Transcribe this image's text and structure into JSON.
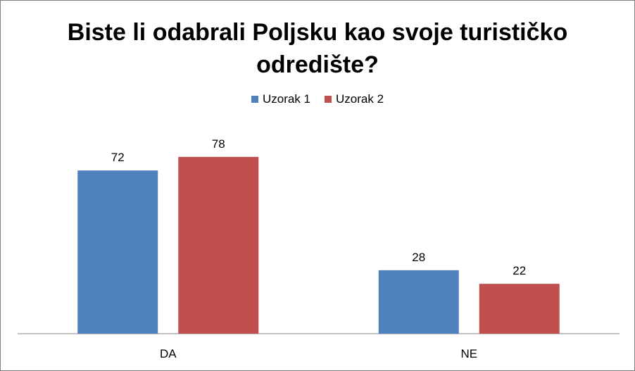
{
  "chart_data": {
    "type": "bar",
    "title": "Biste li odabrali Poljsku kao svoje turističko odredište?",
    "title_lines": [
      "Biste li odabrali Poljsku kao svoje turističko",
      "odredište?"
    ],
    "categories": [
      "DA",
      "NE"
    ],
    "series": [
      {
        "name": "Uzorak 1",
        "values": [
          72,
          28
        ],
        "color": "#4F81BD"
      },
      {
        "name": "Uzorak 2",
        "values": [
          78,
          22
        ],
        "color": "#C0504D"
      }
    ],
    "ylim": [
      0,
      100
    ],
    "grid": false,
    "legend_position": "top",
    "data_labels": true
  }
}
